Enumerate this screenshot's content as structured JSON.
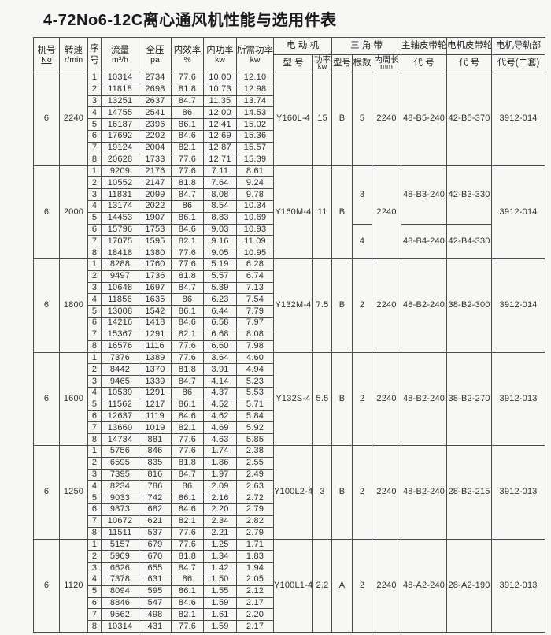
{
  "page": {
    "title": "4-72No6-12C离心通风机性能与选用件表"
  },
  "table": {
    "headers": {
      "fan_no": {
        "l1": "机号",
        "l2": "No"
      },
      "speed": {
        "l1": "转速",
        "l2": "r/min"
      },
      "serial": {
        "l1": "序",
        "l2": "号"
      },
      "flow": {
        "l1": "流量",
        "l2": "m³/h"
      },
      "pressure": {
        "l1": "全压",
        "l2": "pa"
      },
      "efficiency": {
        "l1": "内效率",
        "l2": "%"
      },
      "power": {
        "l1": "内功率",
        "l2": "kw"
      },
      "req_power": {
        "l1": "所需功率",
        "l2": "kw"
      },
      "motor_group": "电 动 机",
      "motor_model": "型 号",
      "motor_power": {
        "l1": "功率",
        "l2": "kw"
      },
      "belt_group": "三 角 带",
      "belt_model": "型号",
      "belt_count": "根数",
      "belt_length": {
        "l1": "内周长",
        "l2": "mm"
      },
      "main_pulley": {
        "l1": "主轴皮带轮",
        "l2": "代 号"
      },
      "motor_pulley": {
        "l1": "电机皮带轮",
        "l2": "代 号"
      },
      "rail": {
        "l1": "电机导轨部",
        "l2": "代号(二套)"
      }
    },
    "blocks": [
      {
        "fan_no": "6",
        "rpm": "2240",
        "rows": [
          [
            "1",
            "10314",
            "2734",
            "77.6",
            "10.00",
            "12.10"
          ],
          [
            "2",
            "11818",
            "2698",
            "81.8",
            "10.73",
            "12.98"
          ],
          [
            "3",
            "13251",
            "2637",
            "84.7",
            "11.35",
            "13.74"
          ],
          [
            "4",
            "14755",
            "2541",
            "86",
            "12.00",
            "14.53"
          ],
          [
            "5",
            "16187",
            "2396",
            "86.1",
            "12.41",
            "15.02"
          ],
          [
            "6",
            "17692",
            "2202",
            "84.6",
            "12.69",
            "15.36"
          ],
          [
            "7",
            "19124",
            "2004",
            "82.1",
            "12.87",
            "15.57"
          ],
          [
            "8",
            "20628",
            "1733",
            "77.6",
            "12.71",
            "15.39"
          ]
        ],
        "motor_model": "Y160L-4",
        "motor_power": "15",
        "belt_model": "B",
        "belt_counts": [
          {
            "value": "5",
            "rows": 8
          }
        ],
        "belt_length": "2240",
        "pulleys": [
          {
            "main": "48-B5-240",
            "motor": "42-B5-370",
            "rows": 8
          }
        ],
        "rail_code": "3912-014"
      },
      {
        "fan_no": "6",
        "rpm": "2000",
        "rows": [
          [
            "1",
            "9209",
            "2176",
            "77.6",
            "7.11",
            "8.61"
          ],
          [
            "2",
            "10552",
            "2147",
            "81.8",
            "7.64",
            "9.24"
          ],
          [
            "3",
            "11831",
            "2099",
            "84.7",
            "8.08",
            "9.78"
          ],
          [
            "4",
            "13174",
            "2022",
            "86",
            "8.54",
            "10.34"
          ],
          [
            "5",
            "14453",
            "1907",
            "86.1",
            "8.83",
            "10.69"
          ],
          [
            "6",
            "15796",
            "1753",
            "84.6",
            "9.03",
            "10.93"
          ],
          [
            "7",
            "17075",
            "1595",
            "82.1",
            "9.16",
            "11.09"
          ],
          [
            "8",
            "18418",
            "1380",
            "77.6",
            "9.05",
            "10.95"
          ]
        ],
        "motor_model": "Y160M-4",
        "motor_power": "11",
        "belt_model": "B",
        "belt_counts": [
          {
            "value": "3",
            "rows": 5
          },
          {
            "value": "4",
            "rows": 3
          }
        ],
        "belt_length": "2240",
        "pulleys": [
          {
            "main": "48-B3-240",
            "motor": "42-B3-330",
            "rows": 5
          },
          {
            "main": "48-B4-240",
            "motor": "42-B4-330",
            "rows": 3
          }
        ],
        "rail_code": "3912-014"
      },
      {
        "fan_no": "6",
        "rpm": "1800",
        "rows": [
          [
            "1",
            "8288",
            "1760",
            "77.6",
            "5.19",
            "6.28"
          ],
          [
            "2",
            "9497",
            "1736",
            "81.8",
            "5.57",
            "6.74"
          ],
          [
            "3",
            "10648",
            "1697",
            "84.7",
            "5.89",
            "7.13"
          ],
          [
            "4",
            "11856",
            "1635",
            "86",
            "6.23",
            "7.54"
          ],
          [
            "5",
            "13008",
            "1542",
            "86.1",
            "6.44",
            "7.79"
          ],
          [
            "6",
            "14216",
            "1418",
            "84.6",
            "6.58",
            "7.97"
          ],
          [
            "7",
            "15367",
            "1291",
            "82.1",
            "6.68",
            "8.08"
          ],
          [
            "8",
            "16576",
            "1116",
            "77.6",
            "6.60",
            "7.98"
          ]
        ],
        "motor_model": "Y132M-4",
        "motor_power": "7.5",
        "belt_model": "B",
        "belt_counts": [
          {
            "value": "2",
            "rows": 8
          }
        ],
        "belt_length": "2240",
        "pulleys": [
          {
            "main": "48-B2-240",
            "motor": "38-B2-300",
            "rows": 8
          }
        ],
        "rail_code": "3912-014"
      },
      {
        "fan_no": "6",
        "rpm": "1600",
        "rows": [
          [
            "1",
            "7376",
            "1389",
            "77.6",
            "3.64",
            "4.60"
          ],
          [
            "2",
            "8442",
            "1370",
            "81.8",
            "3.91",
            "4.94"
          ],
          [
            "3",
            "9465",
            "1339",
            "84.7",
            "4.14",
            "5.23"
          ],
          [
            "4",
            "10539",
            "1291",
            "86",
            "4.37",
            "5.53"
          ],
          [
            "5",
            "11562",
            "1217",
            "86.1",
            "4.52",
            "5.71"
          ],
          [
            "6",
            "12637",
            "1119",
            "84.6",
            "4.62",
            "5.84"
          ],
          [
            "7",
            "13660",
            "1019",
            "82.1",
            "4.69",
            "5.92"
          ],
          [
            "8",
            "14734",
            "881",
            "77.6",
            "4.63",
            "5.85"
          ]
        ],
        "motor_model": "Y132S-4",
        "motor_power": "5.5",
        "belt_model": "B",
        "belt_counts": [
          {
            "value": "2",
            "rows": 8
          }
        ],
        "belt_length": "2240",
        "pulleys": [
          {
            "main": "48-B2-240",
            "motor": "38-B2-270",
            "rows": 8
          }
        ],
        "rail_code": "3912-013"
      },
      {
        "fan_no": "6",
        "rpm": "1250",
        "rows": [
          [
            "1",
            "5756",
            "846",
            "77.6",
            "1.74",
            "2.38"
          ],
          [
            "2",
            "6595",
            "835",
            "81.8",
            "1.86",
            "2.55"
          ],
          [
            "3",
            "7395",
            "816",
            "84.7",
            "1.97",
            "2.49"
          ],
          [
            "4",
            "8234",
            "786",
            "86",
            "2.09",
            "2.63"
          ],
          [
            "5",
            "9033",
            "742",
            "86.1",
            "2.16",
            "2.72"
          ],
          [
            "6",
            "9873",
            "682",
            "84.6",
            "2.20",
            "2.79"
          ],
          [
            "7",
            "10672",
            "621",
            "82.1",
            "2.34",
            "2.82"
          ],
          [
            "8",
            "11511",
            "537",
            "77.6",
            "2.21",
            "2.79"
          ]
        ],
        "motor_model": "Y100L2-4",
        "motor_power": "3",
        "belt_model": "B",
        "belt_counts": [
          {
            "value": "2",
            "rows": 8
          }
        ],
        "belt_length": "2240",
        "pulleys": [
          {
            "main": "48-B2-240",
            "motor": "28-B2-215",
            "rows": 8
          }
        ],
        "rail_code": "3912-013"
      },
      {
        "fan_no": "6",
        "rpm": "1120",
        "rows": [
          [
            "1",
            "5157",
            "679",
            "77.6",
            "1.25",
            "1.71"
          ],
          [
            "2",
            "5909",
            "670",
            "81.8",
            "1.34",
            "1.83"
          ],
          [
            "3",
            "6626",
            "655",
            "84.7",
            "1.42",
            "1.94"
          ],
          [
            "4",
            "7378",
            "631",
            "86",
            "1.50",
            "2.05"
          ],
          [
            "5",
            "8094",
            "595",
            "86.1",
            "1.55",
            "2.12"
          ],
          [
            "6",
            "8846",
            "547",
            "84.6",
            "1.59",
            "2.17"
          ],
          [
            "7",
            "9562",
            "498",
            "82.1",
            "1.61",
            "2.20"
          ],
          [
            "8",
            "10314",
            "431",
            "77.6",
            "1.59",
            "2.17"
          ]
        ],
        "motor_model": "Y100L1-4",
        "motor_power": "2.2",
        "belt_model": "A",
        "belt_counts": [
          {
            "value": "2",
            "rows": 8
          }
        ],
        "belt_length": "2240",
        "pulleys": [
          {
            "main": "48-A2-240",
            "motor": "28-A2-190",
            "rows": 8
          }
        ],
        "rail_code": "3912-013"
      }
    ]
  }
}
